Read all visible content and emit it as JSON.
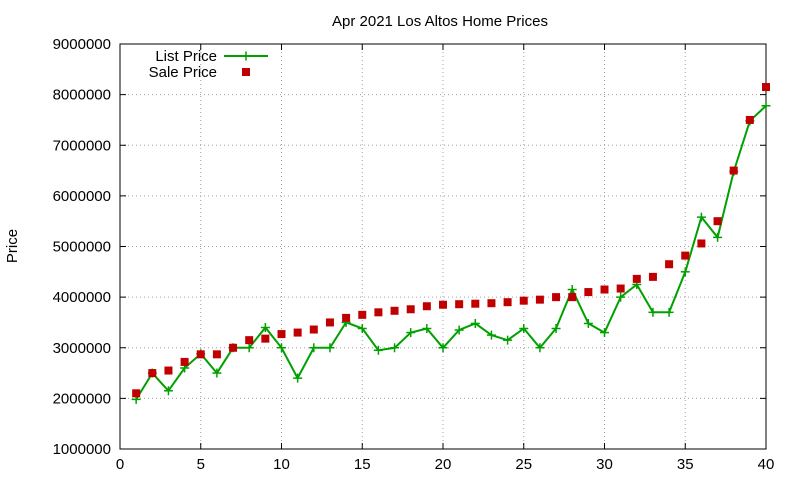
{
  "chart_data": {
    "type": "line",
    "title": "Apr 2021 Los Altos Home Prices",
    "xlabel": "",
    "ylabel": "Price",
    "xlim": [
      0,
      40
    ],
    "ylim": [
      1000000,
      9000000
    ],
    "xticks": [
      0,
      5,
      10,
      15,
      20,
      25,
      30,
      35,
      40
    ],
    "yticks": [
      1000000,
      2000000,
      3000000,
      4000000,
      5000000,
      6000000,
      7000000,
      8000000,
      9000000
    ],
    "xtick_labels": [
      "0",
      "5",
      "10",
      "15",
      "20",
      "25",
      "30",
      "35",
      "40"
    ],
    "ytick_labels": [
      "1000000",
      "2000000",
      "3000000",
      "4000000",
      "5000000",
      "6000000",
      "7000000",
      "8000000",
      "9000000"
    ],
    "grid": true,
    "legend_position": "top-left",
    "series": [
      {
        "name": "List Price",
        "style": "line-with-plus-markers",
        "color": "#00a000",
        "x": [
          1,
          2,
          3,
          4,
          5,
          6,
          7,
          8,
          9,
          10,
          11,
          12,
          13,
          14,
          15,
          16,
          17,
          18,
          19,
          20,
          21,
          22,
          23,
          24,
          25,
          26,
          27,
          28,
          29,
          30,
          31,
          32,
          33,
          34,
          35,
          36,
          37,
          38,
          39,
          40
        ],
        "values": [
          1980000,
          2500000,
          2150000,
          2600000,
          2880000,
          2500000,
          3000000,
          3000000,
          3400000,
          3000000,
          2400000,
          3000000,
          3000000,
          3500000,
          3380000,
          2950000,
          3000000,
          3300000,
          3380000,
          3000000,
          3350000,
          3480000,
          3250000,
          3150000,
          3380000,
          3000000,
          3380000,
          4150000,
          3480000,
          3300000,
          4000000,
          4250000,
          3700000,
          3700000,
          4500000,
          5580000,
          5180000,
          6480000,
          7480000,
          7780000
        ]
      },
      {
        "name": "Sale Price",
        "style": "square-markers",
        "color": "#c00000",
        "x": [
          1,
          2,
          3,
          4,
          5,
          6,
          7,
          8,
          9,
          10,
          11,
          12,
          13,
          14,
          15,
          16,
          17,
          18,
          19,
          20,
          21,
          22,
          23,
          24,
          25,
          26,
          27,
          28,
          29,
          30,
          31,
          32,
          33,
          34,
          35,
          36,
          37,
          38,
          39,
          40
        ],
        "values": [
          2100000,
          2500000,
          2550000,
          2720000,
          2870000,
          2870000,
          3000000,
          3150000,
          3180000,
          3270000,
          3300000,
          3360000,
          3500000,
          3590000,
          3650000,
          3700000,
          3730000,
          3760000,
          3820000,
          3850000,
          3860000,
          3870000,
          3880000,
          3900000,
          3930000,
          3950000,
          4000000,
          4000000,
          4100000,
          4150000,
          4170000,
          4360000,
          4400000,
          4650000,
          4820000,
          5060000,
          5500000,
          6500000,
          7500000,
          8150000
        ]
      }
    ]
  }
}
